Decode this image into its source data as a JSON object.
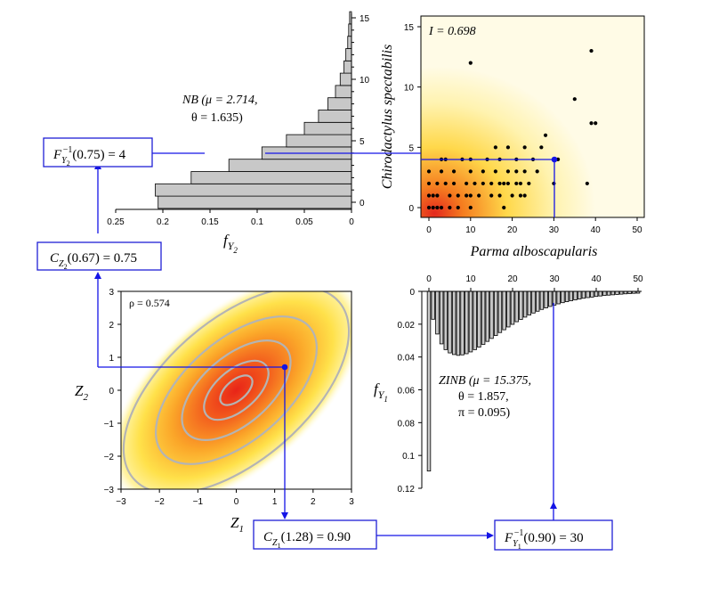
{
  "colors": {
    "connector": "#1414e6",
    "bar_fill": "#c8c8c8",
    "point": "#000000",
    "ellipse": "#b4b4b4"
  },
  "chart_data": [
    {
      "id": "nb",
      "type": "bar",
      "orientation": "horizontal",
      "annotation": [
        "NB (μ = 2.714,",
        "θ = 1.635)"
      ],
      "xlabel": "f_Y2",
      "xlim": [
        0.25,
        0
      ],
      "x_ticks": [
        0.25,
        0.2,
        0.15,
        0.1,
        0.05,
        0
      ],
      "x_tick_labels": [
        "0.25",
        "0.2",
        "0.15",
        "0.1",
        "0.05",
        "0"
      ],
      "ylim": [
        0,
        15
      ],
      "y_ticks": [
        0,
        5,
        10,
        15
      ],
      "y_tick_labels": [
        "0",
        "5",
        "10",
        "15"
      ],
      "categories": [
        0,
        1,
        2,
        3,
        4,
        5,
        6,
        7,
        8,
        9,
        10,
        11,
        12,
        13,
        14,
        15
      ],
      "values": [
        0.205,
        0.208,
        0.17,
        0.13,
        0.095,
        0.069,
        0.05,
        0.035,
        0.025,
        0.017,
        0.012,
        0.008,
        0.006,
        0.004,
        0.003,
        0.002
      ]
    },
    {
      "id": "scatter",
      "type": "scatter",
      "annotation": "I = 0.698",
      "xlabel": "Parma alboscapularis",
      "ylabel": "Chirodactylus spectabilis",
      "xlim": [
        -2,
        52
      ],
      "ylim": [
        -0.6,
        16
      ],
      "x_ticks": [
        0,
        10,
        20,
        30,
        40,
        50
      ],
      "x_tick_labels": [
        "0",
        "10",
        "20",
        "30",
        "40",
        "50"
      ],
      "y_ticks": [
        0,
        5,
        10,
        15
      ],
      "y_tick_labels": [
        "0",
        "5",
        "10",
        "15"
      ],
      "background": "density heatmap (yellow to red)",
      "points": [
        [
          0,
          0
        ],
        [
          1,
          0
        ],
        [
          2,
          0
        ],
        [
          3,
          0
        ],
        [
          5,
          0
        ],
        [
          7,
          0
        ],
        [
          10,
          0
        ],
        [
          18,
          0
        ],
        [
          0,
          1
        ],
        [
          1,
          1
        ],
        [
          2,
          1
        ],
        [
          5,
          1
        ],
        [
          7,
          1
        ],
        [
          9,
          1
        ],
        [
          10,
          1
        ],
        [
          12,
          1
        ],
        [
          15,
          1
        ],
        [
          17,
          1
        ],
        [
          20,
          1
        ],
        [
          22,
          1
        ],
        [
          23,
          1
        ],
        [
          0,
          2
        ],
        [
          2,
          2
        ],
        [
          4,
          2
        ],
        [
          6,
          2
        ],
        [
          9,
          2
        ],
        [
          11,
          2
        ],
        [
          13,
          2
        ],
        [
          15,
          2
        ],
        [
          17,
          2
        ],
        [
          18,
          2
        ],
        [
          19,
          2
        ],
        [
          21,
          2
        ],
        [
          22,
          2
        ],
        [
          24,
          2
        ],
        [
          30,
          2
        ],
        [
          38,
          2
        ],
        [
          0,
          3
        ],
        [
          3,
          3
        ],
        [
          6,
          3
        ],
        [
          10,
          3
        ],
        [
          13,
          3
        ],
        [
          16,
          3
        ],
        [
          19,
          3
        ],
        [
          21,
          3
        ],
        [
          23,
          3
        ],
        [
          26,
          3
        ],
        [
          3,
          4
        ],
        [
          4,
          4
        ],
        [
          8,
          4
        ],
        [
          10,
          4
        ],
        [
          14,
          4
        ],
        [
          17,
          4
        ],
        [
          21,
          4
        ],
        [
          25,
          4
        ],
        [
          30,
          4
        ],
        [
          31,
          4
        ],
        [
          16,
          5
        ],
        [
          19,
          5
        ],
        [
          23,
          5
        ],
        [
          27,
          5
        ],
        [
          28,
          6
        ],
        [
          35,
          9
        ],
        [
          39,
          7
        ],
        [
          40,
          7
        ],
        [
          10,
          12
        ],
        [
          39,
          13
        ]
      ]
    },
    {
      "id": "zinb",
      "type": "bar",
      "annotation": [
        "ZINB (μ = 15.375,",
        "θ = 1.857,",
        "π = 0.095)"
      ],
      "ylabel": "f_Y1",
      "xlim": [
        -1,
        51
      ],
      "x_ticks": [
        0,
        10,
        20,
        30,
        40,
        50
      ],
      "x_tick_labels": [
        "0",
        "10",
        "20",
        "30",
        "40",
        "50"
      ],
      "ylim": [
        0,
        0.12
      ],
      "y_ticks": [
        0,
        0.02,
        0.04,
        0.06,
        0.08,
        0.1,
        0.12
      ],
      "y_tick_labels": [
        "0",
        "0.02",
        "0.04",
        "0.06",
        "0.08",
        "0.1",
        "0.12"
      ],
      "categories": [
        0,
        1,
        2,
        3,
        4,
        5,
        6,
        7,
        8,
        9,
        10,
        11,
        12,
        13,
        14,
        15,
        16,
        17,
        18,
        19,
        20,
        21,
        22,
        23,
        24,
        25,
        26,
        27,
        28,
        29,
        30,
        31,
        32,
        33,
        34,
        35,
        36,
        37,
        38,
        39,
        40,
        41,
        42,
        43,
        44,
        45,
        46,
        47,
        48,
        49,
        50
      ],
      "values": [
        0.1095,
        0.017,
        0.026,
        0.032,
        0.0355,
        0.0375,
        0.0385,
        0.039,
        0.0387,
        0.038,
        0.0369,
        0.0355,
        0.034,
        0.0323,
        0.0305,
        0.0287,
        0.0269,
        0.0251,
        0.0234,
        0.0217,
        0.0201,
        0.0185,
        0.0171,
        0.0157,
        0.0144,
        0.0132,
        0.0121,
        0.011,
        0.0101,
        0.0092,
        0.0084,
        0.0076,
        0.0069,
        0.0063,
        0.0057,
        0.0052,
        0.0047,
        0.0042,
        0.0038,
        0.0035,
        0.0031,
        0.0028,
        0.0025,
        0.0023,
        0.0021,
        0.0019,
        0.0017,
        0.0015,
        0.0014,
        0.0012,
        0.0011
      ]
    },
    {
      "id": "copula",
      "type": "heatmap",
      "description_label": "ρ = 0.574",
      "rho": 0.574,
      "xlabel": "Z1",
      "ylabel": "Z2",
      "xlim": [
        -3,
        3
      ],
      "ylim": [
        -3,
        3
      ],
      "x_ticks": [
        -3,
        -2,
        -1,
        0,
        1,
        2,
        3
      ],
      "x_tick_labels": [
        "−3",
        "−2",
        "−1",
        "0",
        "1",
        "2",
        "3"
      ],
      "y_ticks": [
        -3,
        -2,
        -1,
        0,
        1,
        2,
        3
      ],
      "y_tick_labels": [
        "−3",
        "−2",
        "−1",
        "0",
        "1",
        "2",
        "3"
      ],
      "contour_levels": [
        0.4,
        0.8,
        1.35,
        2.0,
        2.8
      ],
      "marked_point": [
        1.28,
        0.67
      ]
    }
  ],
  "boxes": {
    "f_inv_y2": {
      "func": "F",
      "sub": "Y",
      "subsub": "2",
      "sup": "−1",
      "text": "(0.75) = 4"
    },
    "c_z2": {
      "func": "C",
      "sub": "Z",
      "subsub": "2",
      "text": "(0.67) = 0.75"
    },
    "c_z1": {
      "func": "C",
      "sub": "Z",
      "subsub": "1",
      "text": "(1.28) = 0.90"
    },
    "f_inv_y1": {
      "func": "F",
      "sub": "Y",
      "subsub": "1",
      "sup": "−1",
      "text": "(0.90) = 30"
    }
  }
}
